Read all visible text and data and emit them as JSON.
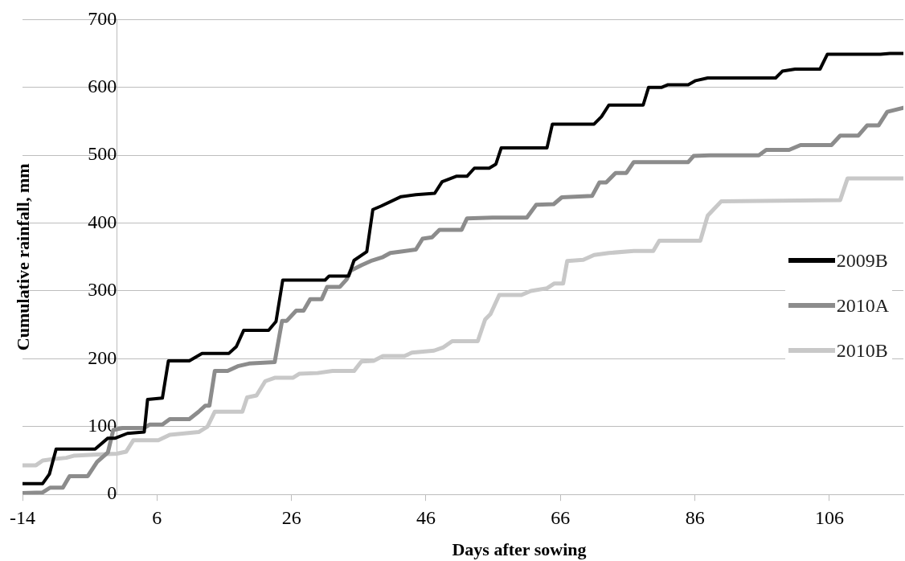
{
  "chart_data": {
    "type": "line",
    "xlabel": "Days after sowing",
    "ylabel": "Cumulative rainfall, mm",
    "xlim": [
      -14,
      117
    ],
    "xticks": [
      -14,
      6,
      26,
      46,
      66,
      86,
      106
    ],
    "ylim": [
      0,
      700
    ],
    "yticks": [
      0,
      100,
      200,
      300,
      400,
      500,
      600,
      700
    ],
    "grid": "y",
    "legend": "right",
    "marker": "none",
    "line_style": "solid",
    "series": [
      {
        "name": "2009B",
        "color": "#000000",
        "x": [
          -14,
          -11,
          -10,
          -9,
          -3.2,
          -1.3,
          -0.2,
          1.6,
          4.1,
          4.6,
          6.8,
          7.7,
          10.8,
          12.7,
          16.7,
          17.8,
          18.9,
          22.6,
          23.7,
          24.7,
          31,
          31.6,
          34.5,
          35.3,
          37.2,
          38.1,
          39.3,
          42.3,
          44.5,
          47.3,
          48.4,
          50.5,
          52.1,
          53.2,
          55.4,
          56.4,
          57.2,
          64,
          64.8,
          71,
          72.1,
          73.2,
          78.3,
          79.1,
          81,
          82,
          85,
          86.1,
          87.9,
          98,
          99,
          100.9,
          104.6,
          105.7,
          113.6,
          115,
          117
        ],
        "values": [
          16,
          16,
          30,
          67,
          67,
          83,
          83,
          90,
          92,
          140,
          142,
          197,
          197,
          208,
          208,
          218,
          242,
          242,
          255,
          316,
          316,
          322,
          322,
          345,
          358,
          420,
          425,
          439,
          442,
          444,
          461,
          469,
          469,
          481,
          481,
          487,
          511,
          511,
          546,
          546,
          557,
          574,
          574,
          600,
          600,
          604,
          604,
          610,
          614,
          614,
          624,
          627,
          627,
          649,
          649,
          650,
          650
        ]
      },
      {
        "name": "2010A",
        "color": "#8c8c8c",
        "x": [
          -14,
          -11,
          -9.9,
          -8,
          -7,
          -4.3,
          -2.9,
          -1.3,
          -0.5,
          0.9,
          4.1,
          4.9,
          6.8,
          7.9,
          10.8,
          12.2,
          13.2,
          13.8,
          14.6,
          16.5,
          18,
          19.7,
          23.5,
          24.6,
          25.3,
          26.7,
          27.8,
          28.8,
          30.5,
          31.3,
          33.2,
          34.2,
          34.8,
          36.4,
          38,
          39.6,
          40.7,
          42.3,
          44.5,
          45.5,
          46.9,
          48,
          51.3,
          52.1,
          55.9,
          61,
          62.4,
          65,
          66.2,
          70.7,
          71.8,
          72.8,
          74.2,
          75.8,
          76.9,
          85,
          85.8,
          88.2,
          95.5,
          96.6,
          100,
          101.7,
          106.3,
          107.6,
          110.3,
          111.6,
          113.3,
          114.6,
          117
        ],
        "values": [
          2,
          3,
          10,
          10,
          27,
          27,
          48,
          62,
          95,
          98,
          98,
          103,
          103,
          111,
          111,
          122,
          131,
          131,
          182,
          182,
          189,
          193,
          195,
          256,
          256,
          271,
          271,
          288,
          288,
          306,
          306,
          317,
          330,
          338,
          345,
          350,
          356,
          358,
          361,
          377,
          379,
          390,
          390,
          407,
          408,
          408,
          427,
          428,
          438,
          440,
          460,
          460,
          474,
          474,
          490,
          490,
          499,
          500,
          500,
          508,
          508,
          515,
          515,
          529,
          529,
          544,
          544,
          564,
          570
        ]
      },
      {
        "name": "2010B",
        "color": "#c8c8c8",
        "x": [
          -14,
          -12,
          -11,
          -9.5,
          -7.5,
          -6.4,
          -2.9,
          0,
          1.4,
          2.5,
          6.2,
          7.9,
          12.2,
          13.5,
          14.6,
          18.7,
          19.4,
          20.8,
          22.1,
          23.5,
          26.2,
          27.2,
          29.9,
          32.1,
          35.3,
          36.4,
          38.2,
          39.6,
          42.8,
          43.9,
          47.2,
          48.6,
          49.9,
          53.7,
          54.8,
          55.6,
          56.9,
          60.2,
          61.6,
          64,
          65.1,
          66.4,
          67,
          69.4,
          71,
          73.2,
          76.9,
          79.8,
          80.7,
          86.8,
          87.9,
          89.9,
          107.6,
          108.7,
          117
        ],
        "values": [
          43,
          43,
          50,
          52,
          54,
          57,
          59,
          60,
          63,
          80,
          80,
          88,
          92,
          100,
          122,
          122,
          143,
          146,
          167,
          172,
          172,
          178,
          179,
          182,
          182,
          196,
          197,
          204,
          204,
          209,
          212,
          217,
          226,
          226,
          258,
          266,
          294,
          294,
          300,
          304,
          311,
          311,
          344,
          346,
          353,
          356,
          359,
          359,
          374,
          374,
          411,
          432,
          434,
          466,
          466
        ]
      }
    ]
  }
}
